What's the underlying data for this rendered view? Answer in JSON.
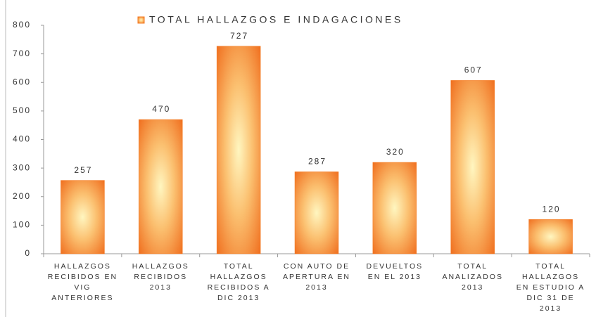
{
  "chart_data": {
    "type": "bar",
    "categories": [
      "HALLAZGOS RECIBIDOS EN VIG ANTERIORES",
      "HALLAZGOS RECIBIDOS 2013",
      "TOTAL HALLAZGOS RECIBIDOS A DIC 2013",
      "CON AUTO DE APERTURA EN 2013",
      "DEVUELTOS EN EL 2013",
      "TOTAL ANALIZADOS 2013",
      "TOTAL HALLAZGOS EN ESTUDIO A DIC 31 DE 2013"
    ],
    "series": [
      {
        "name": "TOTAL HALLAZGOS E INDAGACIONES",
        "color": "#f47a20",
        "values": [
          257,
          470,
          727,
          287,
          320,
          607,
          120
        ]
      }
    ],
    "ylim": [
      0,
      800
    ],
    "yticks": [
      0,
      100,
      200,
      300,
      400,
      500,
      600,
      700,
      800
    ],
    "legend": "top",
    "data_labels": true
  }
}
